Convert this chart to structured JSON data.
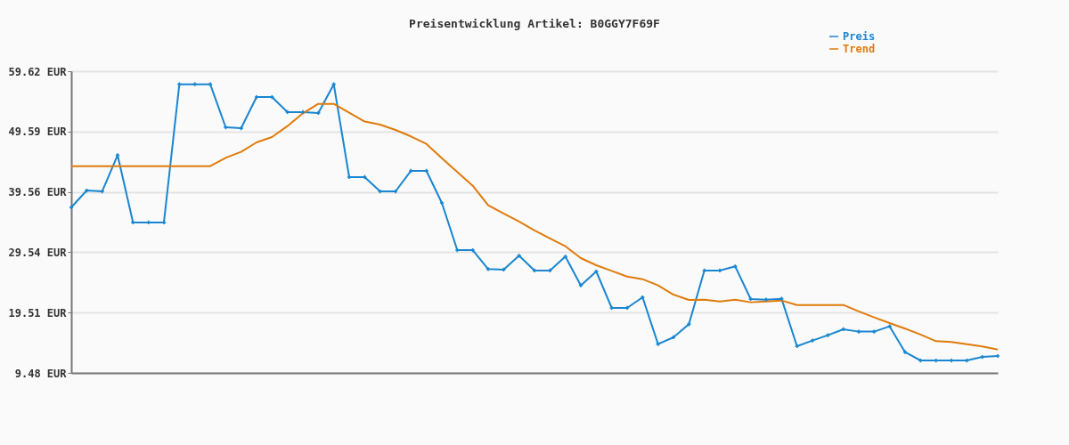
{
  "chart_data": {
    "type": "line",
    "title": "Preisentwicklung Artikel: B0GGY7F69F",
    "categories": [
      null,
      null,
      null,
      null,
      null,
      null,
      null,
      null,
      null,
      null,
      null,
      null,
      null,
      null,
      null,
      null,
      null,
      null,
      null,
      null,
      null,
      null,
      null,
      null,
      null,
      null,
      null,
      null,
      null,
      null,
      null,
      null,
      null,
      null,
      null,
      null,
      null,
      null,
      null,
      null,
      null,
      null,
      null,
      null,
      null,
      null,
      null,
      null,
      null,
      null,
      null,
      null,
      null,
      null,
      null,
      null,
      null,
      null,
      null,
      null,
      null
    ],
    "series": [
      {
        "name": "Preis",
        "color": "#1a86d0",
        "marker": "cross",
        "values": [
          36.99,
          39.8,
          39.65,
          45.67,
          34.48,
          34.48,
          34.48,
          57.45,
          57.45,
          57.45,
          50.3,
          50.15,
          55.33,
          55.33,
          52.82,
          52.82,
          52.67,
          57.45,
          42.02,
          42.02,
          39.65,
          39.65,
          43.06,
          43.06,
          37.73,
          29.89,
          29.89,
          26.74,
          26.64,
          28.96,
          26.49,
          26.49,
          28.81,
          24.02,
          26.34,
          20.28,
          20.28,
          22.05,
          14.26,
          15.4,
          17.57,
          26.49,
          26.49,
          27.18,
          21.76,
          21.66,
          21.81,
          13.92,
          14.86,
          15.74,
          16.73,
          16.34,
          16.34,
          17.22,
          12.93,
          11.55,
          11.55,
          11.55,
          11.55,
          12.14,
          12.29
        ]
      },
      {
        "name": "Trend",
        "color": "#e07b0c",
        "marker": "none",
        "values": [
          43.84,
          43.84,
          43.84,
          43.84,
          43.84,
          43.84,
          43.84,
          43.84,
          43.84,
          43.84,
          45.23,
          46.21,
          47.79,
          48.68,
          50.5,
          52.62,
          54.19,
          54.19,
          52.72,
          51.25,
          50.75,
          49.86,
          48.78,
          47.54,
          45.17,
          42.86,
          40.59,
          37.34,
          35.96,
          34.63,
          33.15,
          31.82,
          30.53,
          28.56,
          27.38,
          26.44,
          25.5,
          25.06,
          24.02,
          22.49,
          21.61,
          21.66,
          21.36,
          21.66,
          21.22,
          21.36,
          21.51,
          20.77,
          20.77,
          20.77,
          20.77,
          19.7,
          18.71,
          17.77,
          16.84,
          15.85,
          14.76,
          14.61,
          14.26,
          13.87,
          13.37
        ]
      }
    ],
    "ylim": [
      9.48,
      59.62
    ],
    "yticks": [
      {
        "value": 9.48,
        "label": "9.48 EUR"
      },
      {
        "value": 19.51,
        "label": "19.51 EUR"
      },
      {
        "value": 29.54,
        "label": "29.54 EUR"
      },
      {
        "value": 39.56,
        "label": "39.56 EUR"
      },
      {
        "value": 49.59,
        "label": "49.59 EUR"
      },
      {
        "value": 59.62,
        "label": "59.62 EUR"
      }
    ],
    "grid": "y",
    "legend": "top right",
    "tick_labels": "y",
    "line_style": "solid"
  }
}
